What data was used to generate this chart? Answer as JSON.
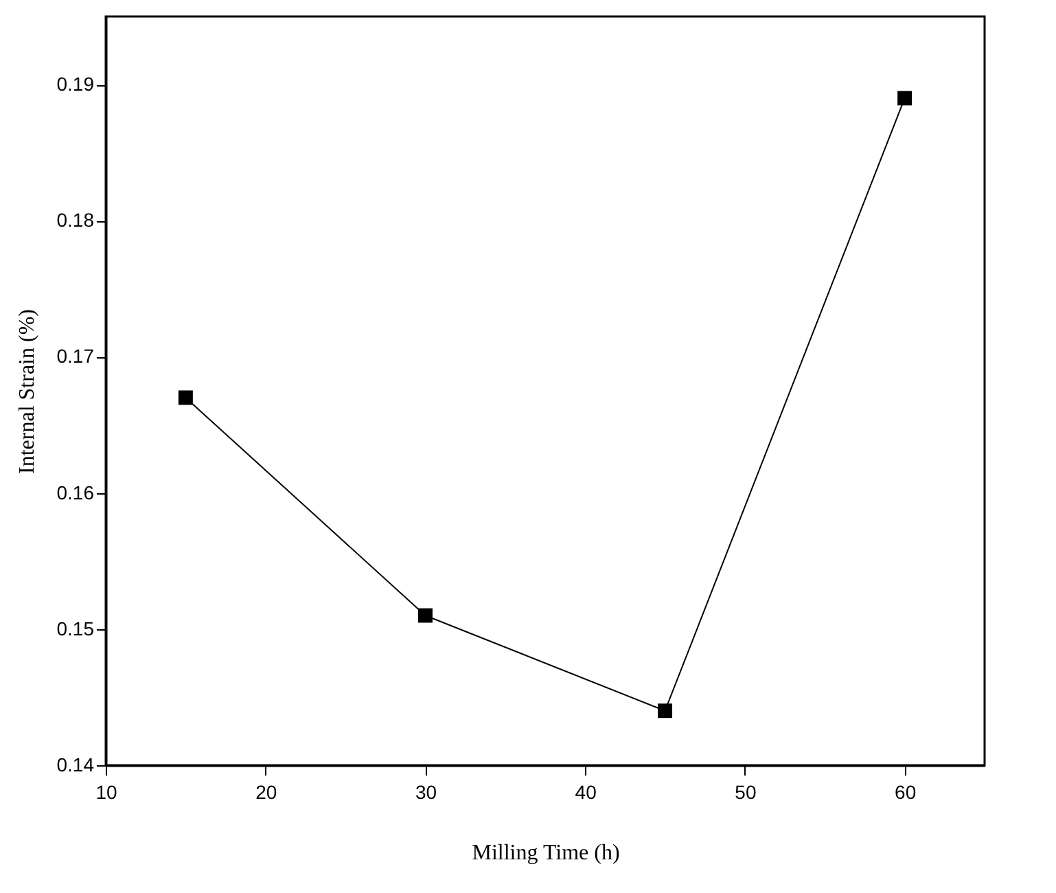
{
  "chart_data": {
    "type": "line",
    "xlabel": "Milling Time (h)",
    "ylabel": "Internal Strain (%)",
    "x": [
      15,
      30,
      45,
      60
    ],
    "series": [
      {
        "color": "#000000",
        "values": [
          0.167,
          0.151,
          0.144,
          0.189
        ]
      }
    ],
    "xlim": [
      10,
      65
    ],
    "xticks": [
      10,
      20,
      30,
      40,
      50,
      60
    ],
    "ylim": [
      0.14,
      0.195
    ],
    "yticks": [
      0.14,
      0.15,
      0.16,
      0.17,
      0.18,
      0.19
    ],
    "marker": "square",
    "line_style": "solid",
    "grid": false
  }
}
